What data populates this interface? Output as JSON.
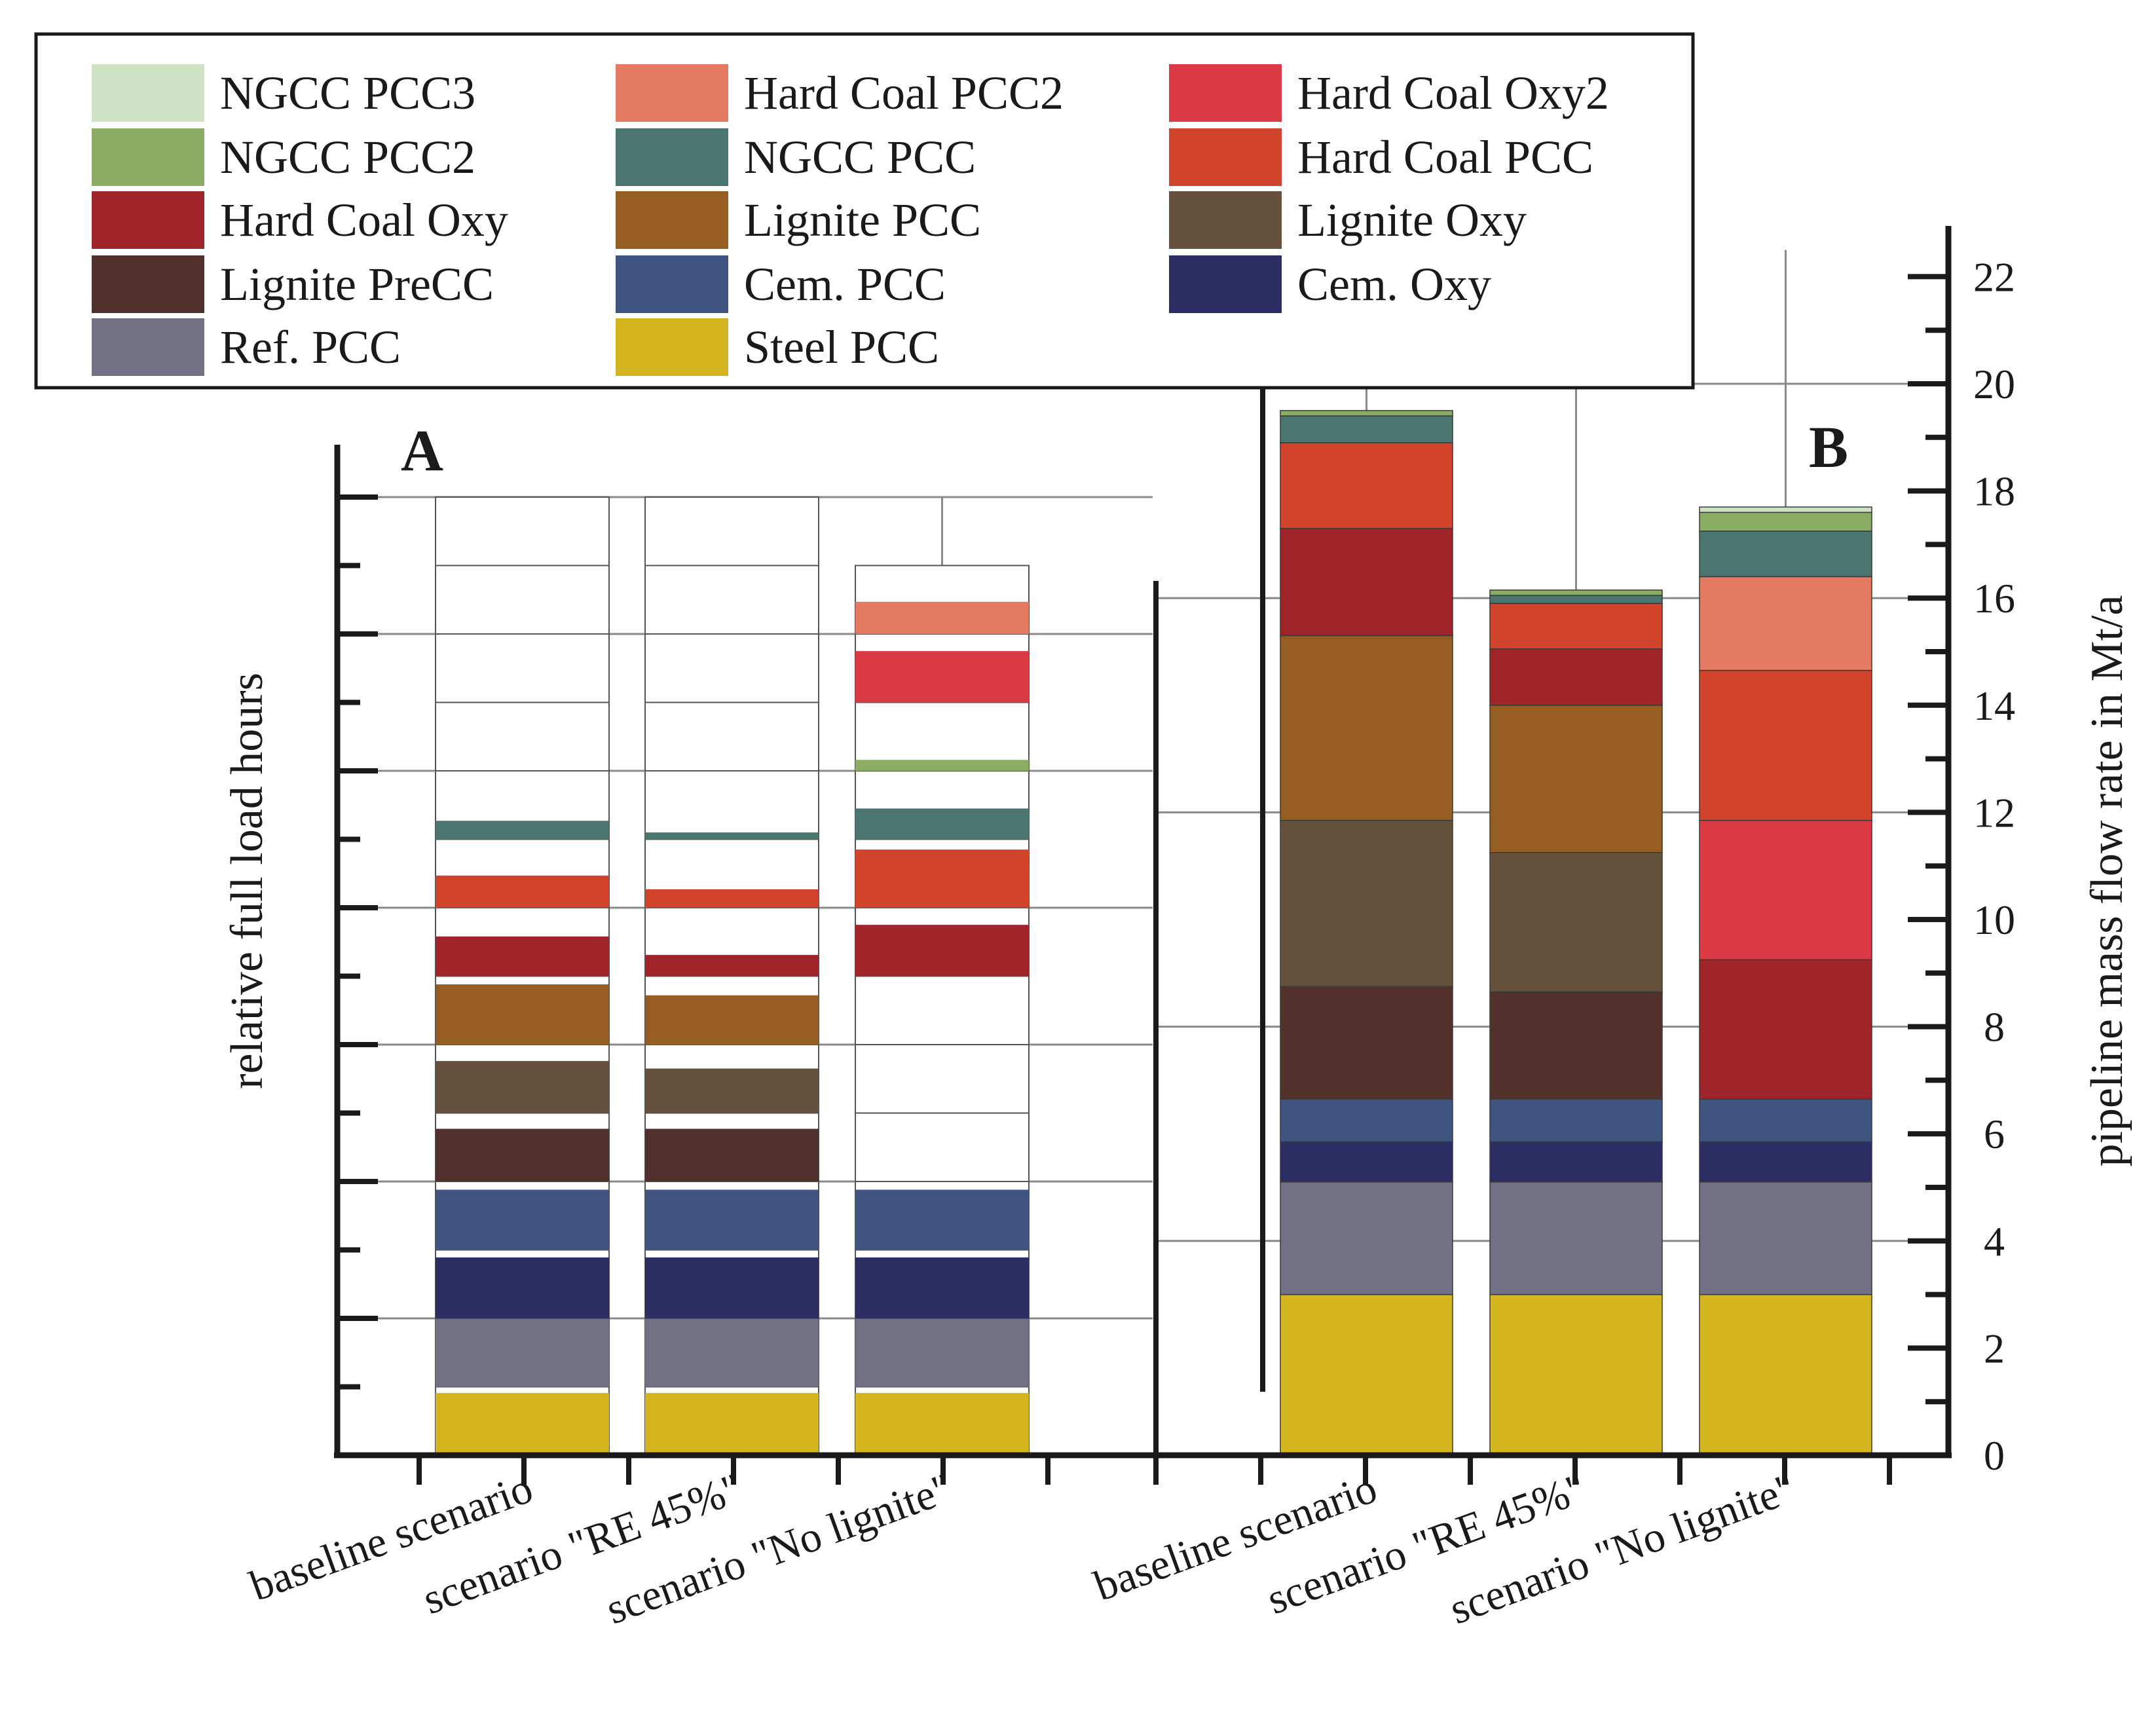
{
  "chart_data": [
    {
      "panel": "A",
      "type": "bar",
      "stacked": true,
      "label": "A",
      "ylabel": "relative full load hours",
      "ylim": [
        0,
        1.4
      ],
      "categories": [
        "baseline scenario",
        "scenario \"RE 45%\"",
        "scenario \"No lignite\""
      ],
      "note": "Each technology occupies a band of height 0.1; the coloured fill shows its relative full load hours, the rest of the band is white.",
      "series": [
        {
          "name": "Steel PCC",
          "values": [
            0.091,
            0.091,
            0.091
          ]
        },
        {
          "name": "Ref. PCC",
          "values": [
            0.1,
            0.1,
            0.1
          ]
        },
        {
          "name": "Cem. Oxy",
          "values": [
            0.089,
            0.089,
            0.089
          ]
        },
        {
          "name": "Cem. PCC",
          "values": [
            0.088,
            0.088,
            0.088
          ]
        },
        {
          "name": "Lignite PreCC",
          "values": [
            0.077,
            0.077,
            0
          ]
        },
        {
          "name": "Lignite Oxy",
          "values": [
            0.076,
            0.065,
            0
          ]
        },
        {
          "name": "Lignite PCC",
          "values": [
            0.088,
            0.072,
            0
          ]
        },
        {
          "name": "Hard Coal Oxy",
          "values": [
            0.058,
            0.031,
            0.075
          ]
        },
        {
          "name": "Hard Coal PCC",
          "values": [
            0.047,
            0.027,
            0.085
          ]
        },
        {
          "name": "NGCC PCC",
          "values": [
            0.027,
            0.01,
            0.045
          ]
        },
        {
          "name": "NGCC PCC2",
          "values": [
            0,
            0,
            0.016
          ]
        },
        {
          "name": "Hard Coal Oxy2",
          "values": [
            0,
            0,
            0.075
          ]
        },
        {
          "name": "Hard Coal PCC2",
          "values": [
            0,
            0,
            0.047
          ]
        },
        {
          "name": "NGCC PCC3",
          "values": [
            0,
            0,
            0
          ]
        }
      ]
    },
    {
      "panel": "B",
      "type": "bar",
      "stacked": true,
      "label": "B",
      "ylabel": "pipeline mass flow rate in Mt/a",
      "ylim": [
        0,
        22
      ],
      "yticks": [
        0,
        2,
        4,
        6,
        8,
        10,
        12,
        14,
        16,
        18,
        20,
        22
      ],
      "categories": [
        "baseline scenario",
        "scenario \"RE 45%\"",
        "scenario \"No lignite\""
      ],
      "series": [
        {
          "name": "Steel PCC",
          "values": [
            3.0,
            3.0,
            3.0
          ]
        },
        {
          "name": "Ref. PCC",
          "values": [
            2.1,
            2.1,
            2.1
          ]
        },
        {
          "name": "Cem. Oxy",
          "values": [
            0.75,
            0.75,
            0.75
          ]
        },
        {
          "name": "Cem. PCC",
          "values": [
            0.8,
            0.8,
            0.8
          ]
        },
        {
          "name": "Lignite PreCC",
          "values": [
            2.1,
            2.0,
            0
          ]
        },
        {
          "name": "Lignite Oxy",
          "values": [
            3.1,
            2.6,
            0
          ]
        },
        {
          "name": "Lignite PCC",
          "values": [
            3.45,
            2.75,
            0
          ]
        },
        {
          "name": "Hard Coal Oxy",
          "values": [
            2.0,
            1.05,
            2.6
          ]
        },
        {
          "name": "Hard Coal PCC",
          "values": [
            1.6,
            0.85,
            2.8
          ]
        },
        {
          "name": "Hard Coal Oxy2",
          "values": [
            0,
            0,
            2.6
          ]
        },
        {
          "name": "Hard Coal PCC2",
          "values": [
            0,
            0,
            1.75
          ]
        },
        {
          "name": "NGCC PCC",
          "values": [
            0.5,
            0.15,
            0.85
          ]
        },
        {
          "name": "NGCC PCC2",
          "values": [
            0.1,
            0.1,
            0.35
          ]
        },
        {
          "name": "NGCC PCC3",
          "values": [
            0,
            0,
            0.1
          ]
        }
      ]
    }
  ],
  "legend": [
    {
      "name": "NGCC PCC3",
      "color": "#cde3c4"
    },
    {
      "name": "Hard Coal PCC2",
      "color": "#e57a62"
    },
    {
      "name": "Hard Coal Oxy2",
      "color": "#d93a44"
    },
    {
      "name": "NGCC PCC2",
      "color": "#8aac63"
    },
    {
      "name": "NGCC PCC",
      "color": "#4b7670"
    },
    {
      "name": "Hard Coal PCC",
      "color": "#d1432b"
    },
    {
      "name": "Hard Coal Oxy",
      "color": "#a0252a"
    },
    {
      "name": "Lignite PCC",
      "color": "#955d20"
    },
    {
      "name": "Lignite Oxy",
      "color": "#66513d"
    },
    {
      "name": "Lignite PreCC",
      "color": "#52302b"
    },
    {
      "name": "Cem. PCC",
      "color": "#405482"
    },
    {
      "name": "Cem. Oxy",
      "color": "#2b2d63"
    },
    {
      "name": "Ref. PCC",
      "color": "#727085"
    },
    {
      "name": "Steel PCC",
      "color": "#d4b51f"
    }
  ]
}
